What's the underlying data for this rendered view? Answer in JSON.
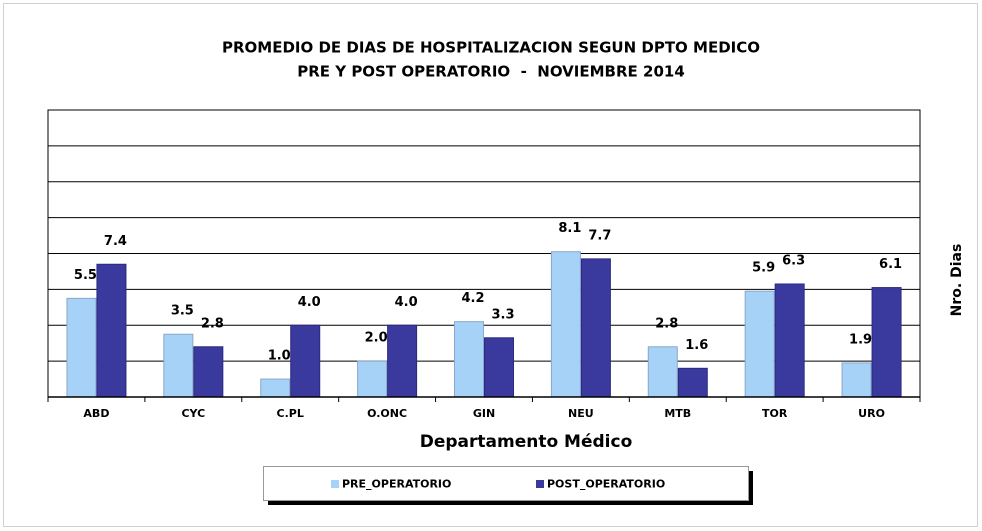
{
  "chart_data": {
    "type": "bar",
    "title": "PROMEDIO DE DIAS DE HOSPITALIZACION SEGUN DPTO MEDICO",
    "subtitle": "PRE Y POST OPERATORIO  -  NOVIEMBRE 2014",
    "x_label": "Departamento Médico",
    "y_label": "Nro. Dias",
    "categories": [
      "ABD",
      "CYC",
      "C.PL",
      "O.ONC",
      "GIN",
      "NEU",
      "MTB",
      "TOR",
      "URO"
    ],
    "series": [
      {
        "name": "PRE_OPERATORIO",
        "color": "#a6d2f7",
        "values": [
          5.5,
          3.5,
          1.0,
          2.0,
          4.2,
          8.1,
          2.8,
          5.9,
          1.9
        ],
        "value_labels": [
          "5.5",
          "3.5",
          "1.0",
          "2.0",
          "4.2",
          "8.1",
          "2.8",
          "5.9",
          "1.9"
        ]
      },
      {
        "name": "POST_OPERATORIO",
        "color": "#3a3a9e",
        "values": [
          7.4,
          2.8,
          4.0,
          4.0,
          3.3,
          7.7,
          1.6,
          6.3,
          6.1
        ],
        "value_labels": [
          "7.4",
          "2.8",
          "4.0",
          "4.0",
          "3.3",
          "7.7",
          "1.6",
          "6.3",
          "6.1"
        ]
      }
    ],
    "ylim": [
      0,
      16
    ],
    "yticks": [
      0,
      2,
      4,
      6,
      8,
      10,
      12,
      14,
      16
    ],
    "grid": true
  }
}
